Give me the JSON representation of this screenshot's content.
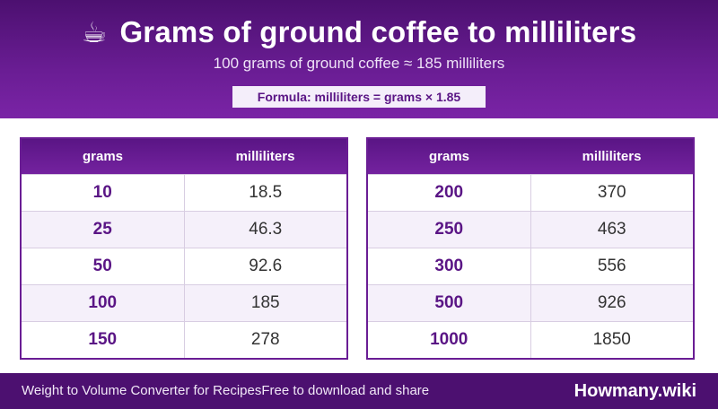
{
  "header": {
    "icon": "coffee-cup-icon",
    "icon_glyph": "☕",
    "title": "Grams of ground coffee to milliliters",
    "subtitle": "100 grams of ground coffee ≈ 185 milliliters",
    "formula": "Formula: milliliters = grams × 1.85"
  },
  "tables": {
    "columns": {
      "grams": "grams",
      "milliliters": "milliliters"
    },
    "left": [
      {
        "grams": "10",
        "ml": "18.5"
      },
      {
        "grams": "25",
        "ml": "46.3"
      },
      {
        "grams": "50",
        "ml": "92.6"
      },
      {
        "grams": "100",
        "ml": "185"
      },
      {
        "grams": "150",
        "ml": "278"
      }
    ],
    "right": [
      {
        "grams": "200",
        "ml": "370"
      },
      {
        "grams": "250",
        "ml": "463"
      },
      {
        "grams": "300",
        "ml": "556"
      },
      {
        "grams": "500",
        "ml": "926"
      },
      {
        "grams": "1000",
        "ml": "1850"
      }
    ]
  },
  "footer": {
    "left_text": "Weight to Volume Converter for Recipes",
    "middle_text": "Free to download and share",
    "brand": "Howmany.wiki"
  },
  "colors": {
    "brand_purple": "#5a1585",
    "header_dark": "#4c1070"
  }
}
